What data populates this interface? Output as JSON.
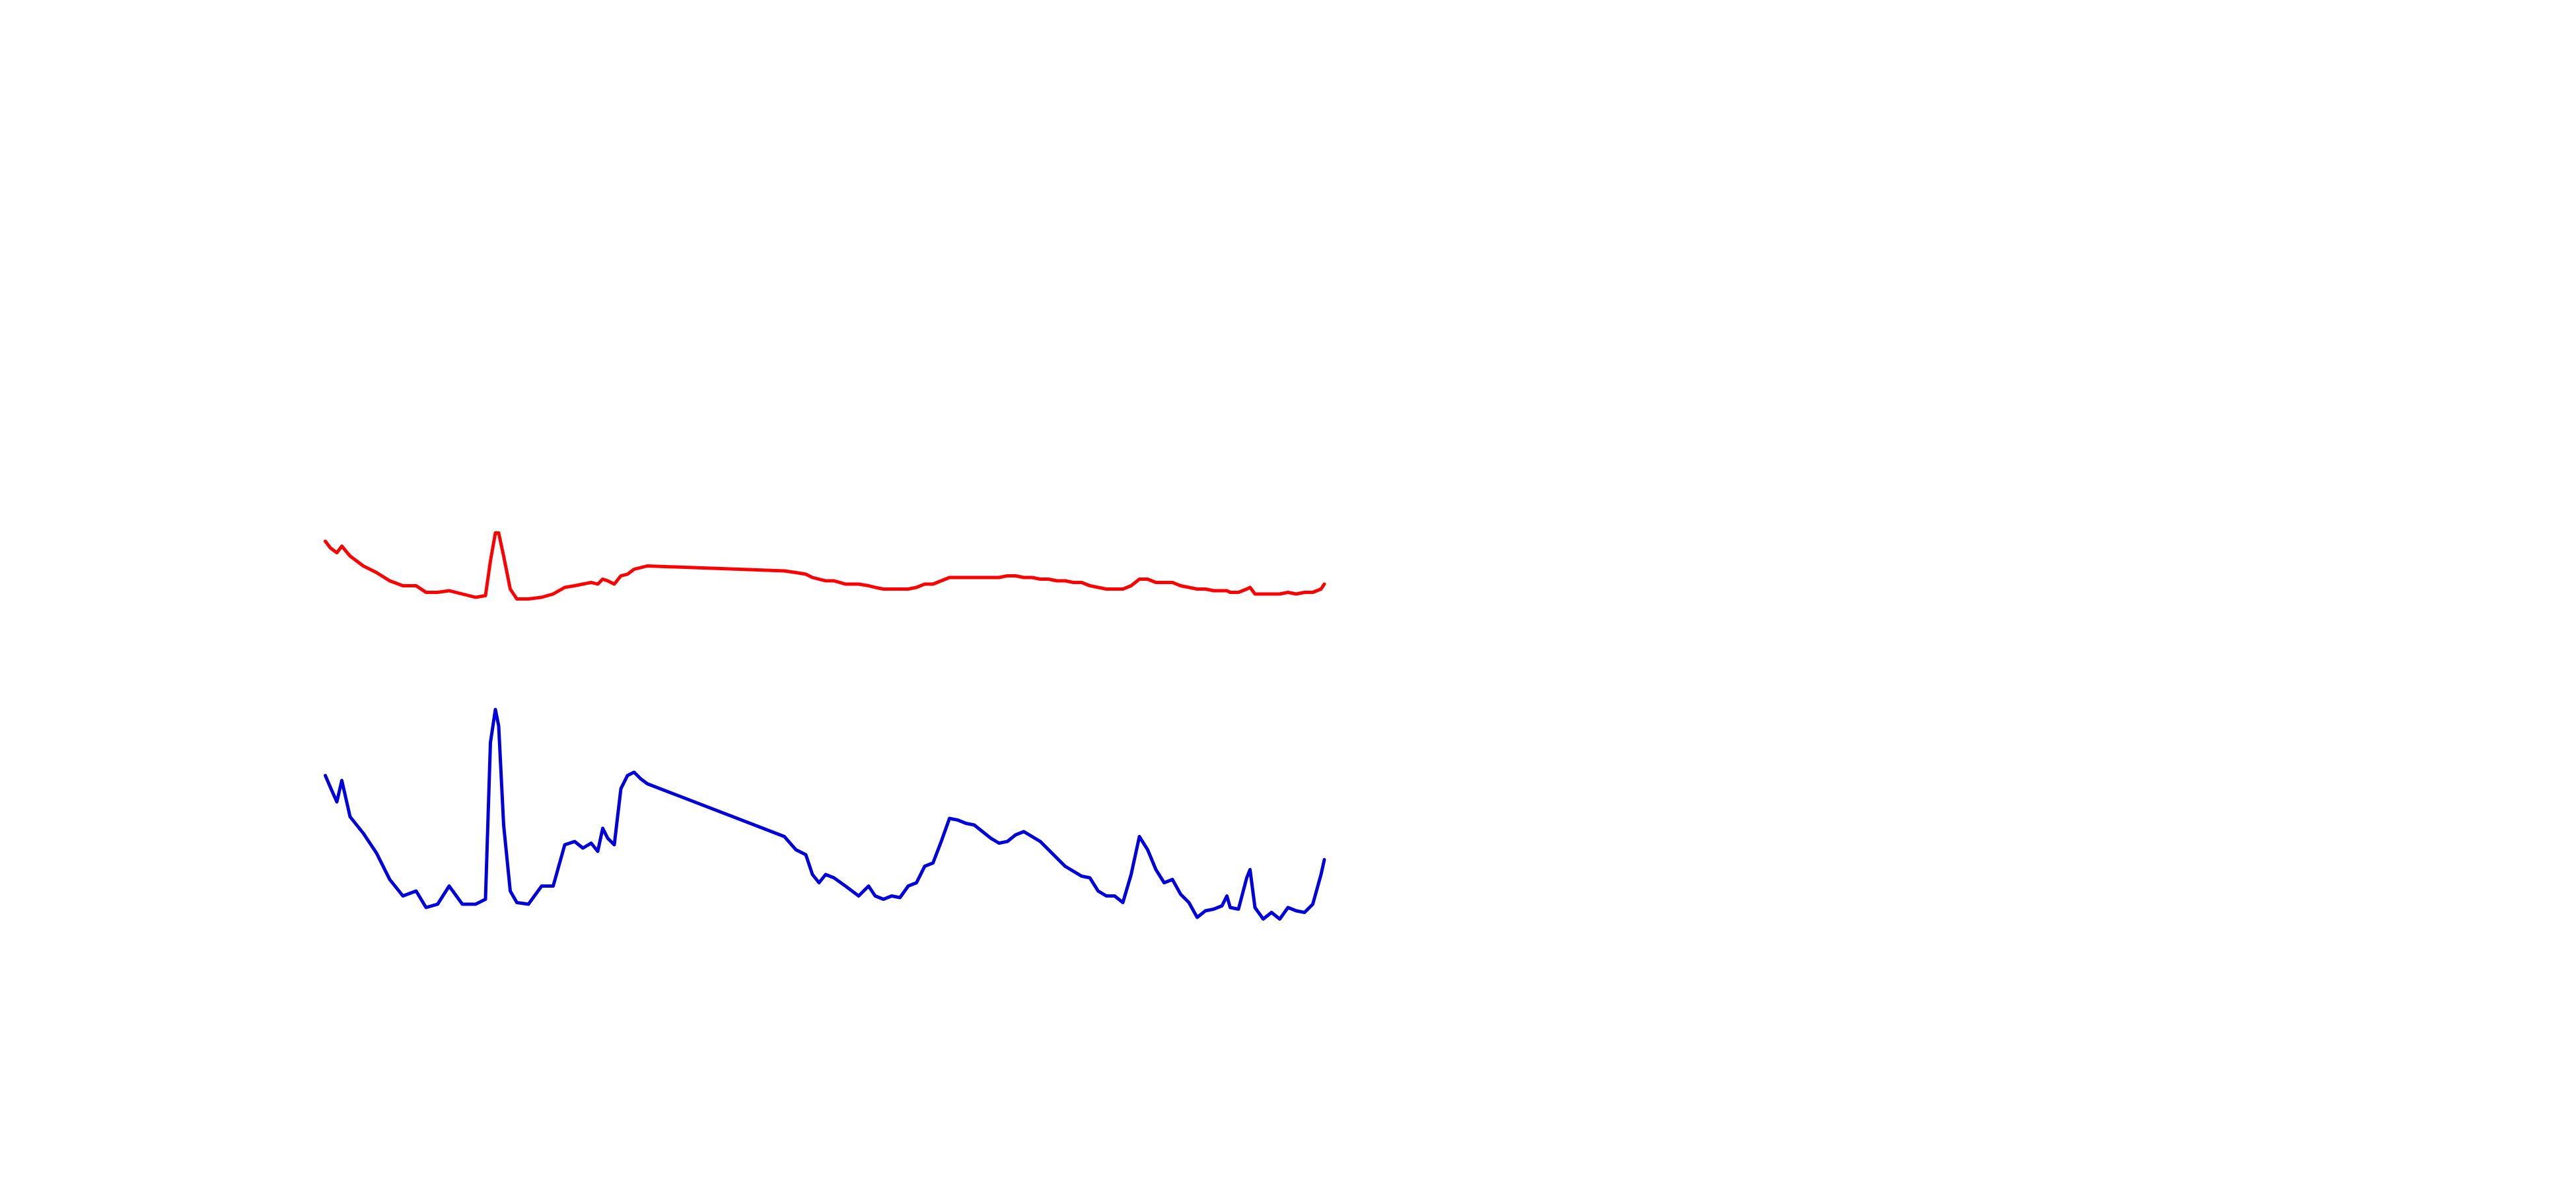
{
  "chart_data": {
    "type": "line",
    "x": [
      197,
      200,
      204,
      207,
      212,
      220,
      228,
      236,
      244,
      252,
      258,
      265,
      272,
      280,
      288,
      294,
      297,
      300,
      302,
      305,
      309,
      313,
      320,
      328,
      335,
      342,
      348,
      353,
      358,
      362,
      365,
      368,
      372,
      376,
      380,
      384,
      388,
      392,
      475,
      482,
      488,
      492,
      496,
      500,
      505,
      512,
      520,
      526,
      530,
      535,
      540,
      545,
      550,
      555,
      560,
      565,
      570,
      575,
      580,
      585,
      590,
      595,
      600,
      605,
      610,
      615,
      620,
      625,
      630,
      635,
      640,
      645,
      650,
      655,
      660,
      665,
      670,
      675,
      680,
      685,
      690,
      695,
      700,
      705,
      710,
      715,
      720,
      725,
      730,
      735,
      740,
      743,
      745,
      750,
      755,
      757,
      760,
      765,
      770,
      775,
      780,
      785,
      790,
      795,
      800,
      802
    ],
    "series": [
      {
        "color": "#ff0000",
        "values": [
          328,
          332,
          335,
          331,
          337,
          343,
          347,
          352,
          355,
          355,
          359,
          359,
          358,
          360,
          362,
          361,
          340,
          323,
          323,
          337,
          357,
          363,
          363,
          362,
          360,
          356,
          355,
          354,
          353,
          354,
          351,
          352,
          354,
          349,
          348,
          345,
          344,
          343,
          346,
          347,
          348,
          350,
          351,
          352,
          352,
          354,
          354,
          355,
          356,
          357,
          357,
          357,
          357,
          356,
          354,
          354,
          352,
          350,
          350,
          350,
          350,
          350,
          350,
          350,
          349,
          349,
          350,
          350,
          351,
          351,
          352,
          352,
          353,
          353,
          355,
          356,
          357,
          357,
          357,
          355,
          351,
          351,
          353,
          353,
          353,
          355,
          356,
          357,
          357,
          358,
          358,
          358,
          359,
          359,
          357,
          356,
          360,
          360,
          360,
          360,
          359,
          360,
          359,
          359,
          357,
          354
        ]
      },
      {
        "color": "#0000dd",
        "values": [
          470,
          477,
          486,
          473,
          495,
          505,
          517,
          533,
          543,
          540,
          550,
          548,
          537,
          548,
          548,
          545,
          450,
          430,
          440,
          500,
          540,
          547,
          548,
          537,
          537,
          512,
          510,
          514,
          511,
          516,
          502,
          508,
          512,
          478,
          470,
          468,
          472,
          475,
          507,
          515,
          518,
          530,
          535,
          530,
          532,
          537,
          543,
          537,
          543,
          545,
          543,
          544,
          537,
          535,
          525,
          523,
          510,
          496,
          497,
          499,
          500,
          504,
          508,
          511,
          510,
          506,
          504,
          507,
          510,
          515,
          520,
          525,
          528,
          531,
          532,
          540,
          543,
          543,
          547,
          530,
          507,
          515,
          527,
          535,
          533,
          542,
          547,
          556,
          552,
          551,
          549,
          543,
          550,
          551,
          532,
          527,
          550,
          557,
          553,
          557,
          550,
          552,
          553,
          548,
          530,
          521
        ]
      }
    ],
    "xlim": [
      0,
      1560
    ],
    "ylim": [
      720,
      0
    ]
  }
}
